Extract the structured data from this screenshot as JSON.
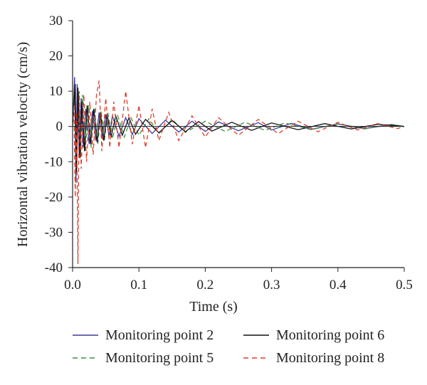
{
  "chart_data": {
    "type": "line",
    "title": "",
    "xlabel": "Time (s)",
    "ylabel": "Horizontal vibration velocity (cm/s)",
    "xlim": [
      0.0,
      0.5
    ],
    "ylim": [
      -40,
      30
    ],
    "x_ticks": [
      "0.0",
      "0.1",
      "0.2",
      "0.3",
      "0.4",
      "0.5"
    ],
    "y_ticks": [
      "30",
      "20",
      "10",
      "0",
      "-10",
      "-20",
      "-30",
      "-40"
    ],
    "grid": false,
    "legend_position": "bottom",
    "series": [
      {
        "name": "Monitoring point 2",
        "color": "#3b3b9a",
        "dash": "solid",
        "x": [
          0,
          0.003,
          0.005,
          0.007,
          0.01,
          0.013,
          0.016,
          0.02,
          0.025,
          0.03,
          0.035,
          0.04,
          0.045,
          0.05,
          0.055,
          0.06,
          0.07,
          0.08,
          0.09,
          0.1,
          0.12,
          0.14,
          0.16,
          0.18,
          0.2,
          0.22,
          0.25,
          0.28,
          0.3,
          0.33,
          0.36,
          0.4,
          0.44,
          0.48,
          0.5
        ],
        "y": [
          0,
          14,
          -16,
          12,
          -8,
          8,
          -6,
          5,
          -5,
          4.5,
          -4,
          4,
          -3.5,
          3.5,
          -3,
          3,
          -2.8,
          2.5,
          -2.3,
          2.2,
          -2,
          1.8,
          -1.6,
          1.5,
          -1.4,
          1.3,
          -1.2,
          1.1,
          -1.0,
          0.9,
          -0.8,
          0.7,
          -0.6,
          0.5,
          0
        ]
      },
      {
        "name": "Monitoring point 6",
        "color": "#111111",
        "dash": "solid",
        "x": [
          0,
          0.004,
          0.006,
          0.008,
          0.011,
          0.014,
          0.018,
          0.022,
          0.027,
          0.032,
          0.037,
          0.042,
          0.047,
          0.052,
          0.058,
          0.065,
          0.075,
          0.085,
          0.095,
          0.11,
          0.13,
          0.15,
          0.17,
          0.19,
          0.21,
          0.24,
          0.27,
          0.3,
          0.34,
          0.38,
          0.42,
          0.46,
          0.5
        ],
        "y": [
          0,
          12,
          -13,
          11,
          -9,
          7,
          -7,
          6,
          -5,
          5,
          -4.5,
          4,
          -4,
          3.5,
          -3,
          3,
          -2.5,
          2.5,
          -2.2,
          2,
          -1.8,
          1.7,
          -1.5,
          1.4,
          -1.3,
          1.2,
          -1.1,
          1.0,
          -0.9,
          0.8,
          -0.7,
          0.6,
          0
        ]
      },
      {
        "name": "Monitoring point 5",
        "color": "#3f8f3f",
        "dash": "dashed",
        "x": [
          0,
          0.003,
          0.006,
          0.009,
          0.012,
          0.015,
          0.019,
          0.024,
          0.028,
          0.033,
          0.038,
          0.043,
          0.048,
          0.053,
          0.06,
          0.068,
          0.078,
          0.088,
          0.1,
          0.115,
          0.13,
          0.15,
          0.17,
          0.2,
          0.23,
          0.26,
          0.29,
          0.32,
          0.36,
          0.4,
          0.44,
          0.48,
          0.5
        ],
        "y": [
          0,
          9,
          -12,
          10,
          -8,
          9,
          -7,
          6,
          -6,
          5,
          -5,
          4.5,
          -4,
          4,
          -3.5,
          3,
          -3,
          2.5,
          -2.5,
          2.2,
          -2,
          2,
          -1.7,
          1.5,
          -1.4,
          1.2,
          -1.1,
          1.0,
          -0.9,
          0.8,
          -0.7,
          0.6,
          0
        ]
      },
      {
        "name": "Monitoring point 8",
        "color": "#d8412f",
        "dash": "dashed",
        "x": [
          0,
          0.002,
          0.004,
          0.006,
          0.008,
          0.01,
          0.013,
          0.017,
          0.021,
          0.026,
          0.031,
          0.036,
          0.04,
          0.044,
          0.05,
          0.056,
          0.062,
          0.07,
          0.08,
          0.09,
          0.1,
          0.11,
          0.12,
          0.13,
          0.145,
          0.16,
          0.18,
          0.2,
          0.22,
          0.25,
          0.28,
          0.31,
          0.34,
          0.37,
          0.4,
          0.43,
          0.46,
          0.49,
          0.5
        ],
        "y": [
          0,
          6,
          -20,
          4,
          -39,
          10,
          -12,
          9,
          -10,
          7,
          -8,
          9,
          13,
          -7,
          8,
          -6,
          7,
          -6,
          10,
          -5,
          6,
          -6,
          5,
          -4,
          4,
          -4,
          3,
          -3,
          2.5,
          -2.5,
          2,
          -2,
          1.5,
          -1.5,
          1.2,
          -1.0,
          0.8,
          -0.6,
          0
        ]
      }
    ]
  }
}
